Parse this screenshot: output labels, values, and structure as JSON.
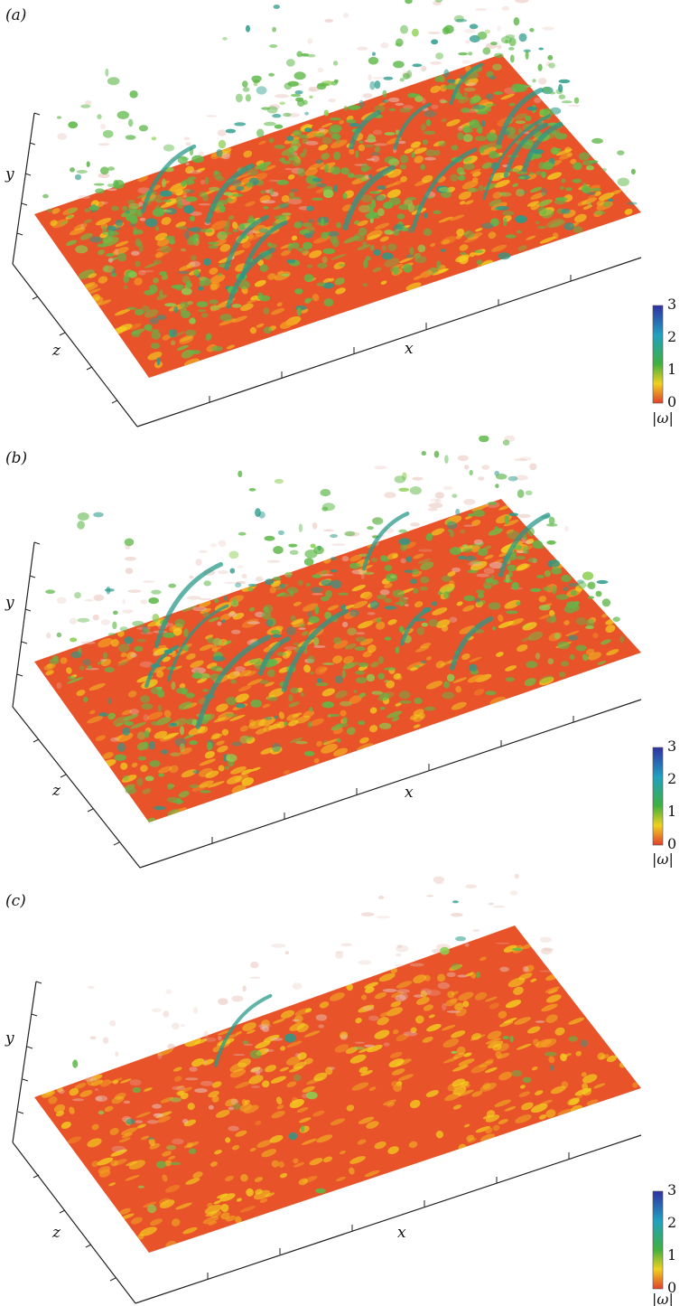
{
  "panels": [
    {
      "label": "(a)",
      "axis_labels": {
        "x": "x",
        "y": "y",
        "z": "z"
      },
      "colorbar": {
        "ticks": [
          "0",
          "1",
          "2",
          "3"
        ],
        "label": "|ω|"
      }
    },
    {
      "label": "(b)",
      "axis_labels": {
        "x": "x",
        "y": "y",
        "z": "z"
      },
      "colorbar": {
        "ticks": [
          "0",
          "1",
          "2",
          "3"
        ],
        "label": "|ω|"
      }
    },
    {
      "label": "(c)",
      "axis_labels": {
        "x": "x",
        "y": "y",
        "z": "z"
      },
      "colorbar": {
        "ticks": [
          "0",
          "1",
          "2",
          "3"
        ],
        "label": "|ω|"
      }
    }
  ],
  "colors": {
    "surface_base": "#e8532a",
    "surface_yellow": "#f3d21e",
    "surface_green": "#6cc246",
    "vortex_green": "#5fb84a",
    "vortex_teal": "#2a9a8a",
    "wisp_pink": "#e8c4bc",
    "colorbar_stops": [
      "#e0402a",
      "#f0d020",
      "#40b040",
      "#20a0c0",
      "#3030a0"
    ]
  },
  "density": {
    "panel_a": 1.0,
    "panel_b": 0.7,
    "panel_c": 0.06
  }
}
